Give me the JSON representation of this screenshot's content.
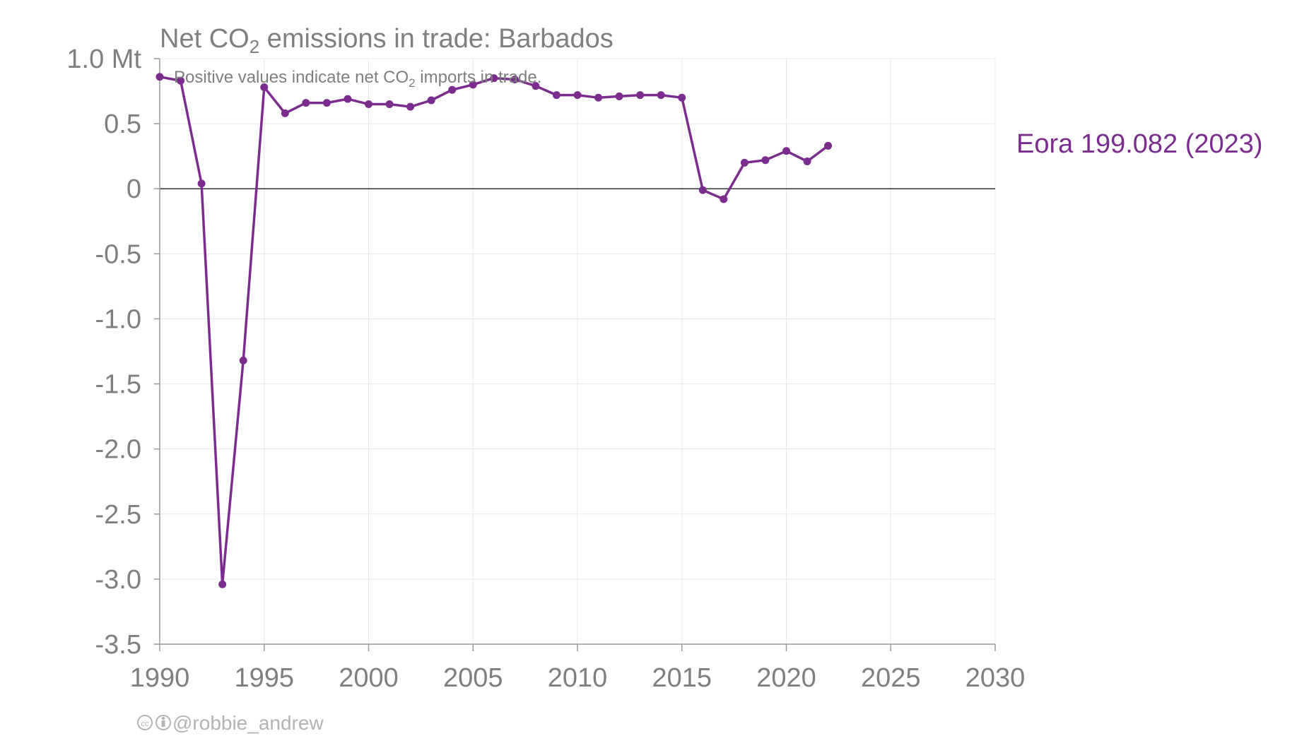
{
  "chart_data": {
    "type": "line",
    "title_prefix": "Net CO",
    "title_sub": "2",
    "title_suffix": " emissions in trade: Barbados",
    "subtitle_prefix": "Positive values indicate net CO",
    "subtitle_sub": "2",
    "subtitle_suffix": " imports in trade.",
    "xlim": [
      1990,
      2030
    ],
    "ylim": [
      -3.5,
      1.0
    ],
    "x_ticks": [
      1990,
      1995,
      2000,
      2005,
      2010,
      2015,
      2020,
      2025,
      2030
    ],
    "x_tick_labels": [
      "1990",
      "1995",
      "2000",
      "2005",
      "2010",
      "2015",
      "2020",
      "2025",
      "2030"
    ],
    "y_ticks": [
      1.0,
      0.5,
      0,
      -0.5,
      -1.0,
      -1.5,
      -2.0,
      -2.5,
      -3.0,
      -3.5
    ],
    "y_tick_labels": [
      "1.0 Mt",
      "0.5",
      "0",
      "-0.5",
      "-1.0",
      "-1.5",
      "-2.0",
      "-2.5",
      "-3.0",
      "-3.5"
    ],
    "grid": true,
    "zero_line": true,
    "series": [
      {
        "name": "Eora 199.082 (2023)",
        "color": "#7b2d8e",
        "x": [
          1990,
          1991,
          1992,
          1993,
          1994,
          1995,
          1996,
          1997,
          1998,
          1999,
          2000,
          2001,
          2002,
          2003,
          2004,
          2005,
          2006,
          2007,
          2008,
          2009,
          2010,
          2011,
          2012,
          2013,
          2014,
          2015,
          2016,
          2017,
          2018,
          2019,
          2020,
          2021,
          2022
        ],
        "values": [
          0.86,
          0.83,
          0.04,
          -3.04,
          -1.32,
          0.78,
          0.58,
          0.66,
          0.66,
          0.69,
          0.65,
          0.65,
          0.63,
          0.68,
          0.76,
          0.8,
          0.85,
          0.84,
          0.79,
          0.72,
          0.72,
          0.7,
          0.71,
          0.72,
          0.72,
          0.7,
          -0.01,
          -0.08,
          0.2,
          0.22,
          0.29,
          0.21,
          0.33
        ]
      }
    ]
  },
  "credit": "@robbie_andrew",
  "credit_icon": "cc-by-icon"
}
